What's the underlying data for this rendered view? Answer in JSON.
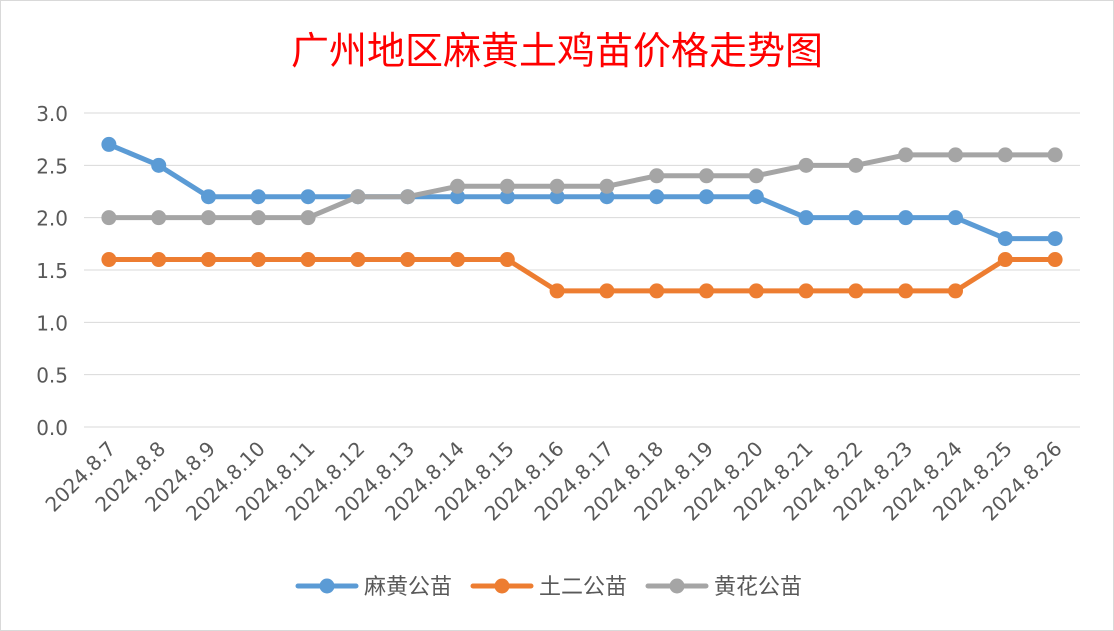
{
  "chart_data": {
    "type": "line",
    "title": "广州地区麻黄土鸡苗价格走势图",
    "title_color": "#ff0000",
    "xlabel": "",
    "ylabel": "",
    "ylim": [
      0,
      3.0
    ],
    "yticks": [
      "0.0",
      "0.5",
      "1.0",
      "1.5",
      "2.0",
      "2.5",
      "3.0"
    ],
    "grid": true,
    "legend_position": "bottom",
    "categories": [
      "2024.8.7",
      "2024.8.8",
      "2024.8.9",
      "2024.8.10",
      "2024.8.11",
      "2024.8.12",
      "2024.8.13",
      "2024.8.14",
      "2024.8.15",
      "2024.8.16",
      "2024.8.17",
      "2024.8.18",
      "2024.8.19",
      "2024.8.20",
      "2024.8.21",
      "2024.8.22",
      "2024.8.23",
      "2024.8.24",
      "2024.8.25",
      "2024.8.26"
    ],
    "series": [
      {
        "name": "麻黄公苗",
        "color": "#5b9bd5",
        "values": [
          2.7,
          2.5,
          2.2,
          2.2,
          2.2,
          2.2,
          2.2,
          2.2,
          2.2,
          2.2,
          2.2,
          2.2,
          2.2,
          2.2,
          2.0,
          2.0,
          2.0,
          2.0,
          1.8,
          1.8
        ]
      },
      {
        "name": "土二公苗",
        "color": "#ed7d31",
        "values": [
          1.6,
          1.6,
          1.6,
          1.6,
          1.6,
          1.6,
          1.6,
          1.6,
          1.6,
          1.3,
          1.3,
          1.3,
          1.3,
          1.3,
          1.3,
          1.3,
          1.3,
          1.3,
          1.6,
          1.6
        ]
      },
      {
        "name": "黄花公苗",
        "color": "#a5a5a5",
        "values": [
          2.0,
          2.0,
          2.0,
          2.0,
          2.0,
          2.2,
          2.2,
          2.3,
          2.3,
          2.3,
          2.3,
          2.4,
          2.4,
          2.4,
          2.5,
          2.5,
          2.6,
          2.6,
          2.6,
          2.6
        ]
      }
    ]
  }
}
